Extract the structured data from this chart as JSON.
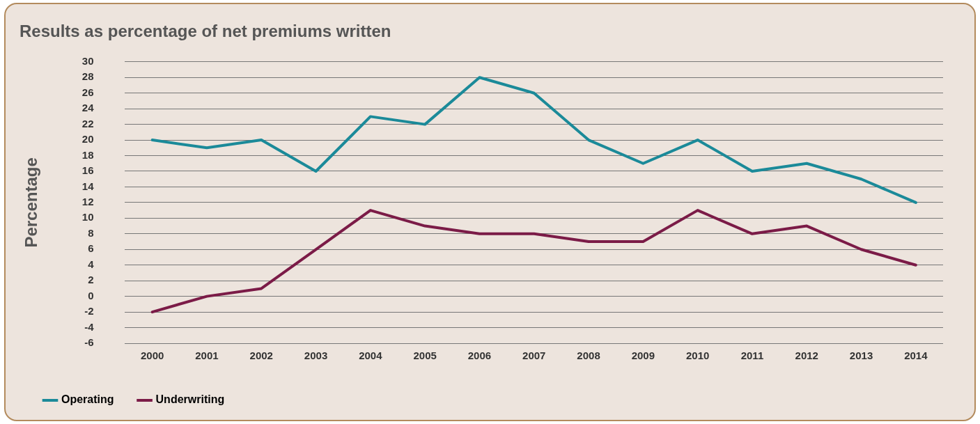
{
  "chart_data": {
    "type": "line",
    "title": "Results as percentage of net premiums written",
    "ylabel": "Percentage",
    "categories": [
      "2000",
      "2001",
      "2002",
      "2003",
      "2004",
      "2005",
      "2006",
      "2007",
      "2008",
      "2009",
      "2010",
      "2011",
      "2012",
      "2013",
      "2014"
    ],
    "series": [
      {
        "name": "Operating",
        "color": "#1b8a99",
        "values": [
          20,
          19,
          20,
          16,
          23,
          22,
          28,
          26,
          20,
          17,
          20,
          16,
          17,
          15,
          12
        ]
      },
      {
        "name": "Underwriting",
        "color": "#7b1b47",
        "values": [
          -2,
          0,
          1,
          6,
          11,
          9,
          8,
          8,
          7,
          7,
          11,
          8,
          9,
          6,
          4
        ]
      }
    ],
    "ylim": [
      -6,
      30
    ],
    "yticks": [
      -6,
      -4,
      -2,
      0,
      2,
      4,
      6,
      8,
      10,
      12,
      14,
      16,
      18,
      20,
      22,
      24,
      26,
      28,
      30
    ],
    "grid": "y",
    "legend": "bottom left",
    "marker": "none",
    "line_style": "solid"
  }
}
